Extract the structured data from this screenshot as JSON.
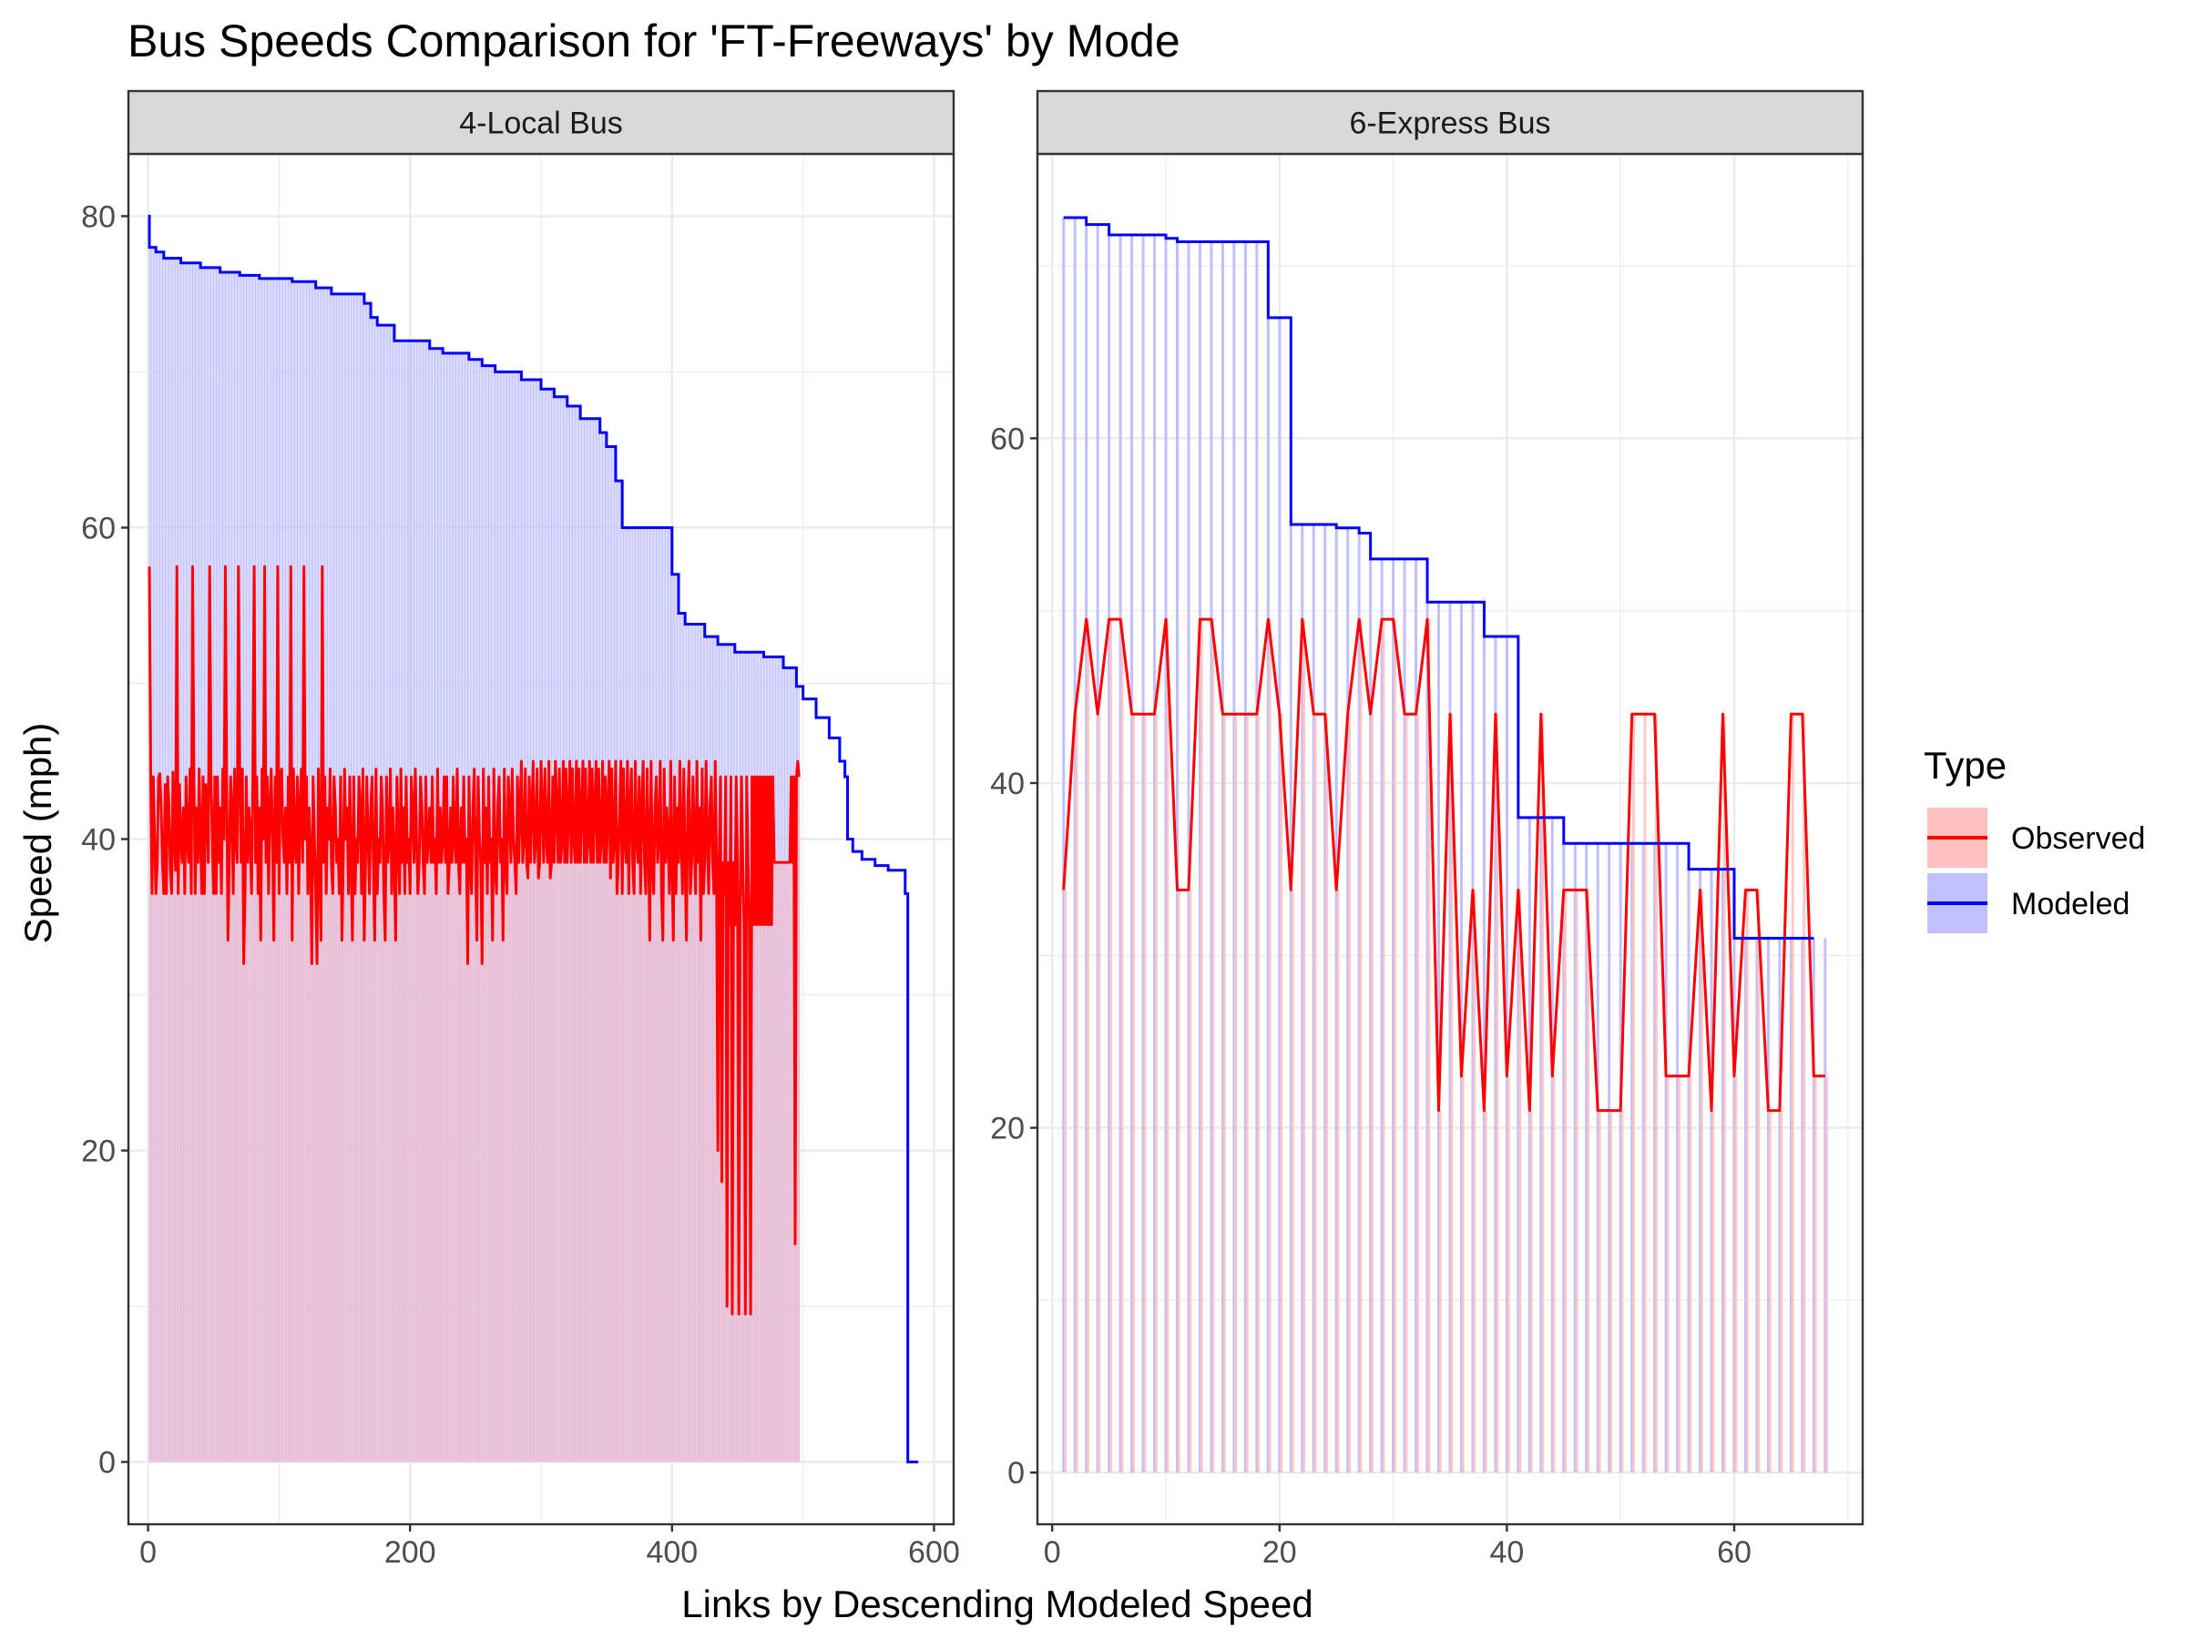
{
  "chart_data": {
    "type": "line",
    "title": "Bus Speeds Comparison for 'FT-Freeways' by Mode",
    "xlabel": "Links by Descending Modeled Speed",
    "ylabel": "Speed (mph)",
    "grid": true,
    "legend": {
      "title": "Type",
      "position": "right",
      "entries": [
        {
          "name": "Observed",
          "line_color": "#ff0000",
          "fill_color": "#ffc0c0"
        },
        {
          "name": "Modeled",
          "line_color": "#0000ff",
          "fill_color": "#c0c0ff"
        }
      ]
    },
    "panels": [
      {
        "strip": "4-Local Bus",
        "xlim": [
          -15,
          615
        ],
        "ylim": [
          -4,
          84
        ],
        "x_ticks": [
          0,
          200,
          400,
          600
        ],
        "y_ticks": [
          0,
          20,
          40,
          60,
          80
        ],
        "modeled_step": [
          [
            0,
            80
          ],
          [
            1,
            78
          ],
          [
            6,
            77.7
          ],
          [
            12,
            77.3
          ],
          [
            25,
            77
          ],
          [
            40,
            76.7
          ],
          [
            55,
            76.4
          ],
          [
            70,
            76.2
          ],
          [
            85,
            76
          ],
          [
            110,
            75.8
          ],
          [
            128,
            75.4
          ],
          [
            140,
            75
          ],
          [
            165,
            74.4
          ],
          [
            170,
            73.5
          ],
          [
            175,
            73
          ],
          [
            188,
            72
          ],
          [
            210,
            72
          ],
          [
            215,
            71.5
          ],
          [
            225,
            71.2
          ],
          [
            245,
            70.8
          ],
          [
            255,
            70.4
          ],
          [
            265,
            70
          ],
          [
            285,
            69.5
          ],
          [
            300,
            68.9
          ],
          [
            310,
            68.4
          ],
          [
            320,
            67.8
          ],
          [
            330,
            67
          ],
          [
            345,
            66.1
          ],
          [
            350,
            65.2
          ],
          [
            357,
            63
          ],
          [
            362,
            60
          ],
          [
            396,
            60
          ],
          [
            400,
            57
          ],
          [
            405,
            54.5
          ],
          [
            410,
            53.8
          ],
          [
            425,
            53
          ],
          [
            435,
            52.5
          ],
          [
            448,
            52
          ],
          [
            470,
            51.7
          ],
          [
            485,
            51
          ],
          [
            495,
            49.8
          ],
          [
            500,
            49
          ],
          [
            510,
            47.8
          ],
          [
            520,
            46.5
          ],
          [
            528,
            45
          ],
          [
            532,
            44
          ],
          [
            534,
            40
          ],
          [
            538,
            39.2
          ],
          [
            545,
            38.7
          ],
          [
            555,
            38.3
          ],
          [
            565,
            38
          ],
          [
            578,
            36.5
          ],
          [
            580,
            0
          ],
          [
            588,
            0
          ]
        ],
        "observed_values": [
          57.5,
          44.5,
          36.5,
          44,
          40,
          36.5,
          38.5,
          44,
          44.2,
          42,
          38.5,
          36.5,
          43.5,
          36.5,
          44,
          42,
          38,
          36.5,
          44.3,
          40,
          38,
          57.5,
          36.5,
          43.5,
          40,
          38.5,
          42,
          36.5,
          44,
          40,
          38.5,
          44.5,
          36.5,
          57.5,
          44,
          36.5,
          42,
          38.5,
          44.5,
          40,
          36.5,
          44,
          36.5,
          43.5,
          42,
          38.5,
          57.5,
          44.5,
          40,
          36.5,
          44,
          36.5,
          44,
          38.5,
          42,
          36.5,
          44.5,
          40,
          57.5,
          44,
          33.5,
          38.5,
          44,
          42,
          36.5,
          44.5,
          40,
          38.5,
          57.5,
          44,
          38.5,
          44.5,
          32,
          36.5,
          44,
          38.5,
          42,
          40,
          36.5,
          44.5,
          57.5,
          38.5,
          44,
          36.5,
          42,
          33.5,
          44.5,
          40,
          57.5,
          38.5,
          44,
          36.5,
          42,
          44.5,
          40,
          33.5,
          44,
          38.5,
          57.5,
          36.5,
          44,
          44.5,
          40,
          38.5,
          42,
          36.5,
          44,
          38.5,
          57.5,
          33.5,
          44.5,
          40,
          38.5,
          44,
          36.5,
          42,
          44.5,
          38.5,
          57.5,
          40,
          44,
          36.5,
          42,
          38.5,
          32,
          44,
          40,
          36.5,
          32,
          44.5,
          38.5,
          33.5,
          57.5,
          38.5,
          44,
          36.5,
          42,
          40,
          44.5,
          38.5,
          36.5,
          44,
          42,
          38.5,
          40,
          36.5,
          44,
          33.5,
          38.5,
          44.5,
          40,
          42,
          36.5,
          44,
          38.5,
          33.5,
          44,
          36.5,
          40,
          38.5,
          44,
          42,
          36.5,
          44.5,
          33.5,
          38.5,
          44,
          40,
          36.5,
          42,
          44,
          38.5,
          33.5,
          44.5,
          36.5,
          40,
          38.5,
          44,
          42,
          36.5,
          33.5,
          44,
          38.5,
          40,
          44.5,
          36.5,
          42,
          38.5,
          33.5,
          44,
          40,
          36.5,
          44.5,
          38.5,
          42,
          36.5,
          44,
          38.5,
          40,
          36.5,
          44,
          42,
          38.5,
          44.5,
          40,
          36.5,
          38.5,
          44,
          42,
          38.5,
          36.5,
          44,
          38.5,
          40,
          42,
          38.5,
          44,
          38.5,
          40,
          36.5,
          44.5,
          38.5,
          42,
          38.5,
          40,
          44,
          38.5,
          44,
          36.5,
          38.5,
          42,
          38.5,
          44,
          40,
          38.5,
          44.5,
          38.5,
          36.5,
          42,
          38.5,
          44,
          38.5,
          40,
          32,
          44,
          38.5,
          36.5,
          42,
          44.5,
          38.5,
          33.5,
          44,
          40,
          38.5,
          32,
          44.5,
          38.5,
          42,
          36.5,
          44,
          38.5,
          40,
          33.5,
          44.5,
          38.5,
          36.5,
          42,
          44,
          38.5,
          40,
          33.5,
          44.5,
          38.5,
          36.5,
          44,
          42,
          38.5,
          44.5,
          40,
          38.5,
          36.5,
          44,
          38.5,
          42,
          45,
          38.5,
          40,
          44.5,
          38.5,
          37.5,
          44,
          38.5,
          42,
          45,
          38.5,
          40,
          44.5,
          37.5,
          38.5,
          45,
          42,
          38.5,
          44.5,
          40,
          38.5,
          45,
          37.5,
          38.5,
          44,
          38.5,
          45,
          42,
          38.5,
          44.5,
          38.5,
          40,
          45,
          38.5,
          44.5,
          38.5,
          42,
          45,
          38.5,
          44.5,
          40,
          38.5,
          45,
          38.5,
          44.5,
          38.5,
          42,
          45,
          38.5,
          44.5,
          38.5,
          40,
          45,
          38.5,
          44.5,
          38.5,
          42,
          45,
          38.5,
          44.5,
          38.5,
          40,
          45,
          38.5,
          44,
          38.5,
          42,
          45,
          37.5,
          44.5,
          38.5,
          40,
          45,
          36.5,
          38.5,
          42,
          45,
          36.5,
          44.5,
          40,
          38.5,
          45,
          36.5,
          42,
          44.5,
          38.5,
          36.5,
          45,
          40,
          38.5,
          44,
          36.5,
          42,
          45,
          38.5,
          36.5,
          44.5,
          40,
          33.5,
          45,
          38.5,
          36.5,
          42,
          44,
          38.5,
          40,
          45,
          36.5,
          33.5,
          44.5,
          38.5,
          42,
          40,
          36.5,
          45,
          38.5,
          33.5,
          44,
          36.5,
          42,
          38.5,
          45,
          40,
          36.5,
          44.5,
          38.5,
          33.5,
          42,
          45,
          36.5,
          38.5,
          44,
          40,
          36.5,
          45,
          38.5,
          42,
          33.5,
          44.5,
          36.5,
          38.5,
          45,
          40,
          36.5,
          42,
          44,
          38.5,
          36.5,
          45,
          38.5,
          20,
          38.5,
          44,
          18,
          38.5,
          36.5,
          44,
          10,
          38.5,
          34.5,
          44,
          9.5,
          38.5,
          34.5,
          44,
          38.5,
          9.5,
          34.5,
          44,
          38.5,
          34.5,
          9.5,
          44,
          38.5,
          34.5,
          9.5,
          44,
          34.5,
          44,
          34.5,
          44,
          34.5,
          44,
          34.5,
          44,
          34.5,
          44,
          34.5,
          44,
          34.5,
          44,
          34.5,
          44,
          38.5,
          38.5,
          38.5,
          38.5,
          38.5,
          38.5,
          38.5,
          38.5,
          38.5,
          38.5,
          38.5,
          38.5,
          38.5,
          44,
          38.5,
          44,
          14,
          44,
          45,
          44
        ]
      },
      {
        "strip": "6-Express Bus",
        "xlim": [
          -1.3,
          71.3
        ],
        "ylim": [
          -3,
          76.5
        ],
        "x_ticks": [
          0,
          20,
          40,
          60
        ],
        "y_ticks": [
          0,
          20,
          40,
          60
        ],
        "modeled_step": [
          [
            1,
            72.8
          ],
          [
            2,
            72.8
          ],
          [
            3,
            72.4
          ],
          [
            4,
            72.4
          ],
          [
            5,
            71.8
          ],
          [
            6,
            71.8
          ],
          [
            10,
            71.6
          ],
          [
            11,
            71.4
          ],
          [
            18,
            71.4
          ],
          [
            19,
            67
          ],
          [
            20,
            67
          ],
          [
            21,
            55
          ],
          [
            24,
            55
          ],
          [
            25,
            54.8
          ],
          [
            27,
            54.5
          ],
          [
            28,
            53
          ],
          [
            32,
            53
          ],
          [
            33,
            50.5
          ],
          [
            37,
            50.5
          ],
          [
            38,
            48.5
          ],
          [
            40,
            48.5
          ],
          [
            41,
            38
          ],
          [
            44,
            38
          ],
          [
            45,
            36.5
          ],
          [
            55,
            36.5
          ],
          [
            56,
            35
          ],
          [
            59,
            35
          ],
          [
            60,
            31
          ],
          [
            67,
            31
          ]
        ],
        "observed_values": [
          33.8,
          44,
          49.5,
          44,
          49.5,
          49.5,
          44,
          44,
          44,
          49.5,
          33.8,
          33.8,
          49.5,
          49.5,
          44,
          44,
          44,
          44,
          49.5,
          44,
          33.8,
          49.5,
          44,
          44,
          33.8,
          44,
          49.5,
          44,
          49.5,
          49.5,
          44,
          44,
          49.5,
          21,
          44,
          23,
          33.8,
          21,
          44,
          23,
          33.8,
          21,
          44,
          23,
          33.8,
          33.8,
          33.8,
          21,
          21,
          21,
          44,
          44,
          44,
          23,
          23,
          23,
          33.8,
          21,
          44,
          23,
          33.8,
          33.8,
          21,
          21,
          44,
          44,
          23,
          23
        ]
      }
    ]
  }
}
